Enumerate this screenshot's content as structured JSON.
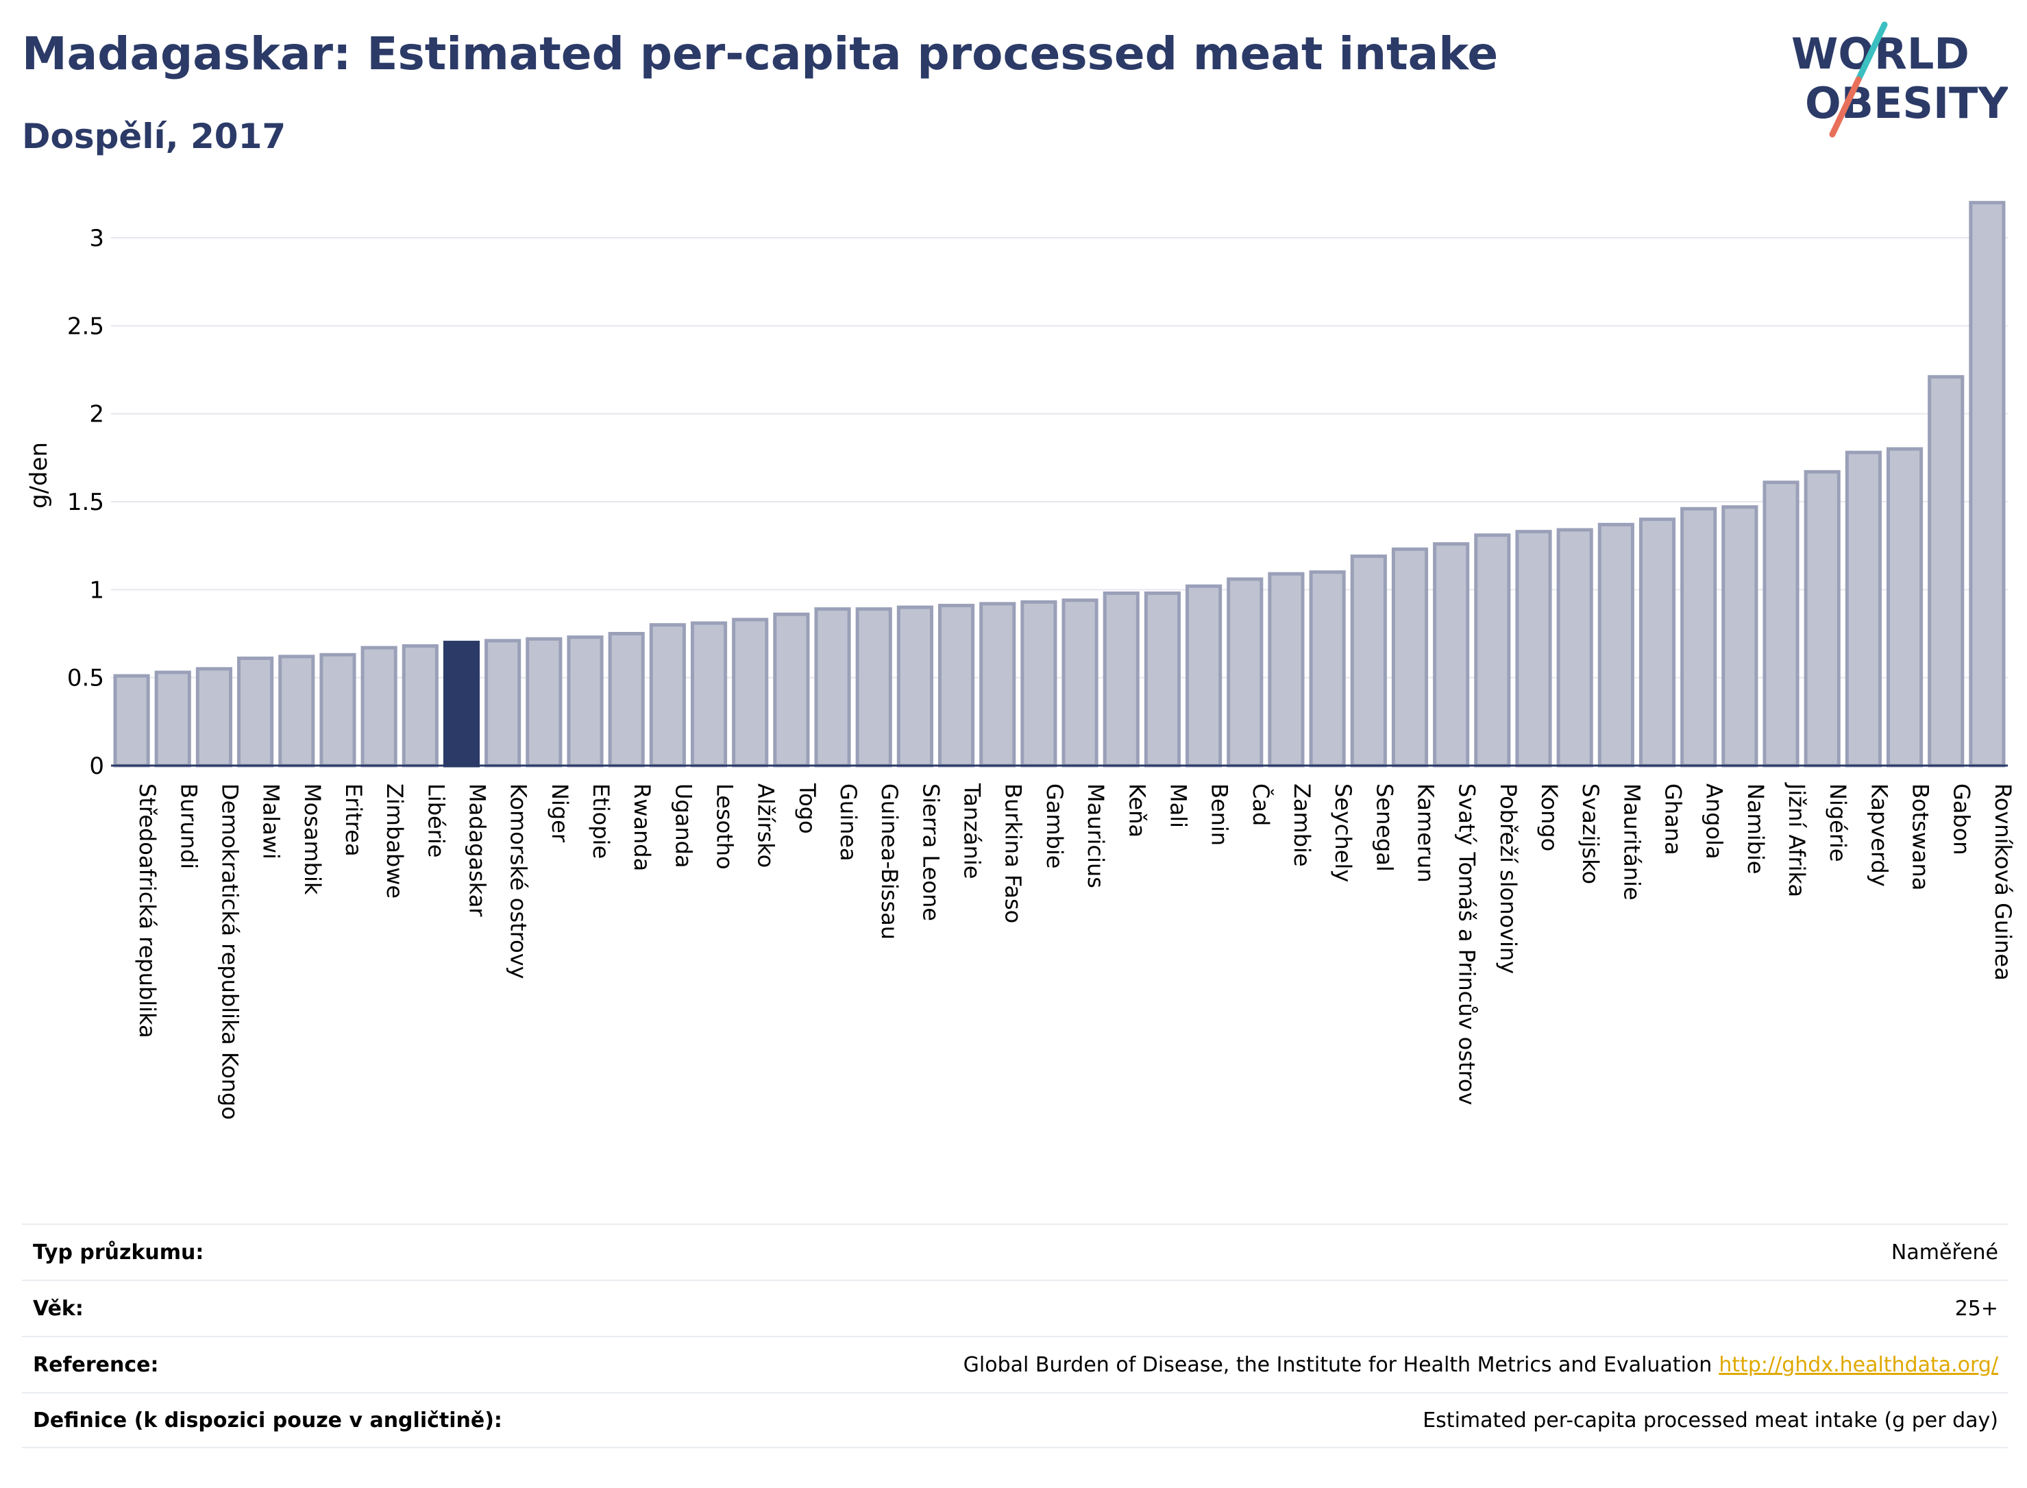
{
  "header": {
    "title": "Madagaskar: Estimated per-capita processed meat intake",
    "subtitle": "Dospělí, 2017"
  },
  "logo": {
    "line1": "WORLD",
    "line2": "OBESITY",
    "icon": "world-obesity-logo"
  },
  "colors": {
    "bar": "#bfc3d1",
    "bar_stroke": "#9aa0b8",
    "highlight": "#2b3a67",
    "title": "#2b3a67",
    "link": "#e0a800",
    "logo_slash_top": "#3bbfc0",
    "logo_slash_bottom": "#e8705a"
  },
  "chart_data": {
    "type": "bar",
    "ylabel": "g/den",
    "xlabel": "",
    "ylim": [
      0,
      3.3
    ],
    "yticks": [
      0,
      0.5,
      1,
      1.5,
      2,
      2.5,
      3
    ],
    "ytick_labels": [
      "0",
      "0.5",
      "1",
      "1.5",
      "2",
      "2.5",
      "3"
    ],
    "grid": true,
    "highlight": "Madagaskar",
    "categories": [
      "Středoafrická republika",
      "Burundi",
      "Demokratická republika Kongo",
      "Malawi",
      "Mosambik",
      "Eritrea",
      "Zimbabwe",
      "Libérie",
      "Madagaskar",
      "Komorské ostrovy",
      "Niger",
      "Etiopie",
      "Rwanda",
      "Uganda",
      "Lesotho",
      "Alžírsko",
      "Togo",
      "Guinea",
      "Guinea-Bissau",
      "Sierra Leone",
      "Tanzánie",
      "Burkina Faso",
      "Gambie",
      "Mauricius",
      "Keňa",
      "Mali",
      "Benin",
      "Čad",
      "Zambie",
      "Seychely",
      "Senegal",
      "Kamerun",
      "Svatý Tomáš a Princův ostrov",
      "Pobřeží slonoviny",
      "Kongo",
      "Svazijsko",
      "Mauritánie",
      "Ghana",
      "Angola",
      "Namibie",
      "Jižní Afrika",
      "Nigérie",
      "Kapverdy",
      "Botswana",
      "Gabon",
      "Rovníková Guinea"
    ],
    "values": [
      0.51,
      0.53,
      0.55,
      0.61,
      0.62,
      0.63,
      0.67,
      0.68,
      0.7,
      0.71,
      0.72,
      0.73,
      0.75,
      0.8,
      0.81,
      0.83,
      0.86,
      0.89,
      0.89,
      0.9,
      0.91,
      0.92,
      0.93,
      0.94,
      0.98,
      0.98,
      1.02,
      1.06,
      1.09,
      1.1,
      1.19,
      1.23,
      1.26,
      1.31,
      1.33,
      1.34,
      1.37,
      1.4,
      1.46,
      1.47,
      1.61,
      1.67,
      1.78,
      1.8,
      2.21,
      3.2
    ]
  },
  "info": {
    "rows": [
      {
        "label": "Typ průzkumu:",
        "value": "Naměřené"
      },
      {
        "label": "Věk:",
        "value": "25+"
      },
      {
        "label": "Reference:",
        "value": "Global Burden of Disease, the Institute for Health Metrics and Evaluation",
        "link": "http://ghdx.healthdata.org/"
      },
      {
        "label": "Definice (k dispozici pouze v angličtině):",
        "value": "Estimated per-capita processed meat intake (g per day)"
      }
    ]
  }
}
